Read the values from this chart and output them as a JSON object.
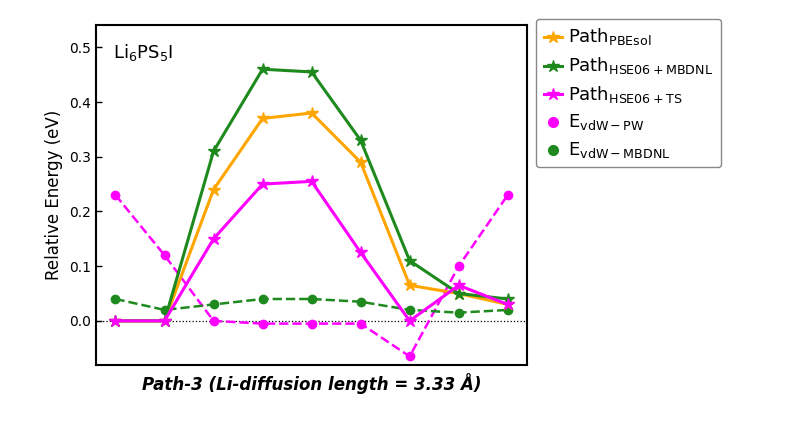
{
  "x": [
    0,
    1,
    2,
    3,
    4,
    5,
    6,
    7,
    8
  ],
  "path_pbesol": [
    0.0,
    0.0,
    0.24,
    0.37,
    0.38,
    0.29,
    0.065,
    0.05,
    0.03
  ],
  "path_hse06_mbdnl": [
    0.0,
    0.0,
    0.31,
    0.46,
    0.455,
    0.33,
    0.11,
    0.05,
    0.04
  ],
  "path_hse06_ts": [
    0.0,
    0.0,
    0.15,
    0.25,
    0.255,
    0.125,
    0.0,
    0.065,
    0.03
  ],
  "evdw_pw": [
    0.23,
    0.12,
    0.0,
    -0.005,
    -0.005,
    -0.005,
    -0.065,
    0.1,
    0.23
  ],
  "evdw_mbdnl": [
    0.04,
    0.02,
    0.03,
    0.04,
    0.04,
    0.035,
    0.02,
    0.015,
    0.02
  ],
  "color_pbesol": "#FFA500",
  "color_hse06_mbdnl": "#1E8A1E",
  "color_hse06_ts": "#FF00FF",
  "color_evdw_pw": "#FF00FF",
  "color_evdw_mbdnl": "#1E8A1E",
  "ylim": [
    -0.08,
    0.54
  ],
  "yticks": [
    0.0,
    0.1,
    0.2,
    0.3,
    0.4,
    0.5
  ],
  "formula_label": "Li$_6$PS$_5$I",
  "xlabel": "Path-3 (Li-diffusion length = 3.33 Å)",
  "ylabel": "Relative Energy (eV)"
}
